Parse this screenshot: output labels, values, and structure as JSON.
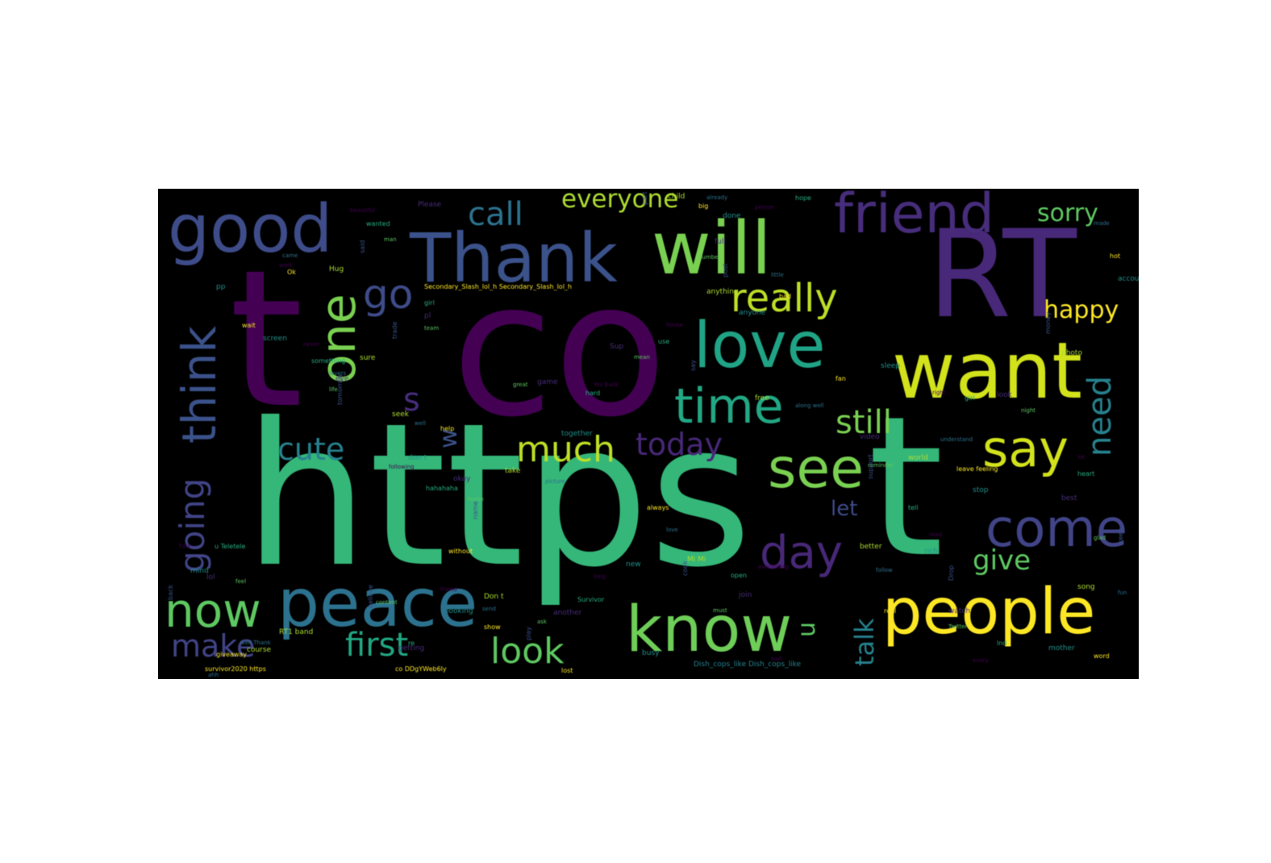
{
  "wordcloud": {
    "colors": {
      "background": "#000000",
      "figure": "#ffffff",
      "palette": [
        "#440154",
        "#472d7b",
        "#3b528b",
        "#2c728e",
        "#21918c",
        "#28ae80",
        "#5ec962",
        "#addc30",
        "#fde725"
      ]
    },
    "words": {
      "https": "https",
      "t_big": "t",
      "co": "co",
      "rt": "RT",
      "t_right": "t",
      "thank": "Thank",
      "will": "will",
      "want": "want",
      "good": "good",
      "friend": "friend",
      "peace": "peace",
      "people": "people",
      "know": "know",
      "love": "love",
      "see": "see",
      "come": "come",
      "time": "time",
      "think": "think",
      "one": "one",
      "now": "now",
      "say": "say",
      "day": "day",
      "really": "really",
      "go": "go",
      "call": "call",
      "everyone": "everyone",
      "sorry": "sorry",
      "happy": "happy",
      "need": "need",
      "still": "still",
      "much": "much",
      "today": "today",
      "cute": "cute",
      "going": "going",
      "make": "make",
      "first": "first",
      "look": "look",
      "talk": "talk",
      "give": "give",
      "let": "let",
      "s": "s",
      "w": "w",
      "u": "u",
      "secondary": "Secondary_Slash_lol_h Secondary_Slash_lol_h",
      "survivor": "survivor2020 https",
      "co_ddg": "co DDgYWeb6ly",
      "dish": "Dish_cops_like Dish_cops_like"
    },
    "small_words": [
      "beautiful",
      "wanted",
      "Please",
      "man",
      "said",
      "Hug",
      "came",
      "Ok",
      "pp",
      "work",
      "girl",
      "pl",
      "team",
      "trade",
      "sure",
      "lovers",
      "wait",
      "screen",
      "never",
      "something",
      "eye",
      "life",
      "tomorrow",
      "seek",
      "well",
      "help",
      "don t",
      "following",
      "hahahaha",
      "okay",
      "home",
      "name",
      "take",
      "picture",
      "without",
      "together",
      "Yes Bank",
      "hard",
      "game",
      "great",
      "part",
      "child",
      "already",
      "big",
      "done",
      "person",
      "hope",
      "full",
      "number",
      "post",
      "anything",
      "little",
      "bad",
      "anyone",
      "house",
      "use",
      "Sup",
      "mean",
      "say",
      "free",
      "along well",
      "fan",
      "sleep",
      "right",
      "girl",
      "look",
      "night",
      "money",
      "photo",
      "made",
      "hot",
      "account",
      "lot",
      "heart",
      "best",
      "glad",
      "keep",
      "song",
      "fun",
      "word",
      "mother",
      "every",
      "lnd",
      "watch",
      "Twitter",
      "Drop",
      "better",
      "follow",
      "real",
      "rich",
      "read",
      "tell",
      "video",
      "reminder",
      "support",
      "world",
      "understand",
      "leave feeling",
      "stop",
      "everything",
      "open",
      "join",
      "must",
      "cook",
      "Mi Mi",
      "love",
      "always",
      "new",
      "long",
      "Survivor",
      "another",
      "ask",
      "play",
      "Don t",
      "send",
      "show",
      "looking",
      "friend",
      "re",
      "getting",
      "content",
      "believe",
      "RT1 band",
      "well Thank",
      "giveaway",
      "mind",
      "fuck",
      "u Teletele",
      "lol",
      "feel",
      "back",
      "course",
      "ahh",
      "lost",
      "busy",
      "bad"
    ]
  }
}
